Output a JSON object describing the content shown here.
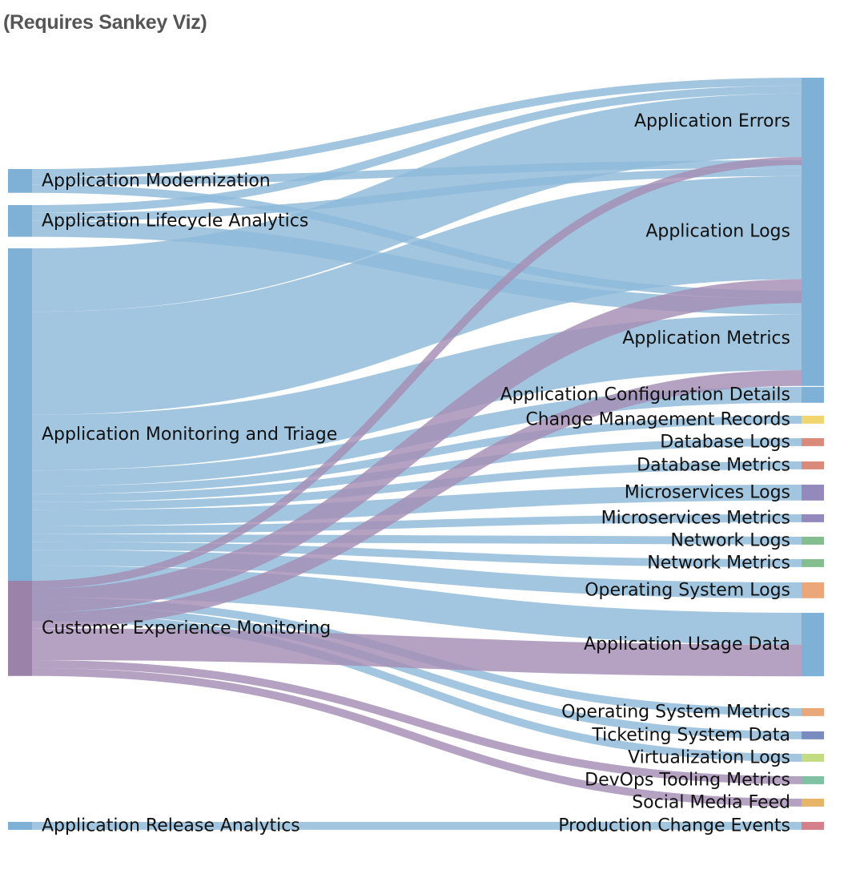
{
  "header": {
    "title": "(Requires Sankey Viz)"
  },
  "colors": {
    "blue_link": "#8fbad9",
    "blue_node": "#7fb1d6",
    "purple_link": "#a58db5",
    "purple_node": "#9b82a9",
    "change_mgmt": "#f1d66f",
    "database": "#d98a7a",
    "microservices": "#9489bd",
    "network": "#84bd8f",
    "os": "#eaa77a",
    "ticketing": "#7b8bbf",
    "virtualization": "#c3dc82",
    "devops": "#7fc1a2",
    "social": "#e6b567",
    "prod_change": "#d57f8a"
  },
  "chart_data": {
    "type": "sankey",
    "sources": [
      "Application Modernization",
      "Application Lifecycle Analytics",
      "Application Monitoring and Triage",
      "Customer Experience Monitoring",
      "Application Release Analytics"
    ],
    "targets": [
      "Application Errors",
      "Application Logs",
      "Application Metrics",
      "Application Configuration Details",
      "Change Management Records",
      "Database Logs",
      "Database Metrics",
      "Microservices Logs",
      "Microservices Metrics",
      "Network Logs",
      "Network Metrics",
      "Operating System Logs",
      "Application Usage Data",
      "Operating System Metrics",
      "Ticketing System Data",
      "Virtualization Logs",
      "DevOps Tooling Metrics",
      "Social Media Feed",
      "Production Change Events"
    ],
    "links": [
      {
        "source": "Application Modernization",
        "target": "Application Errors",
        "value": 1
      },
      {
        "source": "Application Modernization",
        "target": "Application Logs",
        "value": 1
      },
      {
        "source": "Application Modernization",
        "target": "Application Metrics",
        "value": 1
      },
      {
        "source": "Application Lifecycle Analytics",
        "target": "Application Errors",
        "value": 1
      },
      {
        "source": "Application Lifecycle Analytics",
        "target": "Application Logs",
        "value": 1
      },
      {
        "source": "Application Lifecycle Analytics",
        "target": "Application Metrics",
        "value": 2
      },
      {
        "source": "Application Monitoring and Triage",
        "target": "Application Errors",
        "value": 8
      },
      {
        "source": "Application Monitoring and Triage",
        "target": "Application Logs",
        "value": 13
      },
      {
        "source": "Application Monitoring and Triage",
        "target": "Application Metrics",
        "value": 7
      },
      {
        "source": "Application Monitoring and Triage",
        "target": "Application Configuration Details",
        "value": 2
      },
      {
        "source": "Application Monitoring and Triage",
        "target": "Change Management Records",
        "value": 1
      },
      {
        "source": "Application Monitoring and Triage",
        "target": "Database Logs",
        "value": 1
      },
      {
        "source": "Application Monitoring and Triage",
        "target": "Database Metrics",
        "value": 1
      },
      {
        "source": "Application Monitoring and Triage",
        "target": "Microservices Logs",
        "value": 2
      },
      {
        "source": "Application Monitoring and Triage",
        "target": "Microservices Metrics",
        "value": 1
      },
      {
        "source": "Application Monitoring and Triage",
        "target": "Network Logs",
        "value": 1
      },
      {
        "source": "Application Monitoring and Triage",
        "target": "Network Metrics",
        "value": 1
      },
      {
        "source": "Application Monitoring and Triage",
        "target": "Operating System Logs",
        "value": 2
      },
      {
        "source": "Application Monitoring and Triage",
        "target": "Application Usage Data",
        "value": 4
      },
      {
        "source": "Application Monitoring and Triage",
        "target": "Operating System Metrics",
        "value": 1
      },
      {
        "source": "Application Monitoring and Triage",
        "target": "Ticketing System Data",
        "value": 1
      },
      {
        "source": "Application Monitoring and Triage",
        "target": "Virtualization Logs",
        "value": 1
      },
      {
        "source": "Customer Experience Monitoring",
        "target": "Application Errors",
        "value": 1
      },
      {
        "source": "Customer Experience Monitoring",
        "target": "Application Logs",
        "value": 3
      },
      {
        "source": "Customer Experience Monitoring",
        "target": "Application Metrics",
        "value": 2
      },
      {
        "source": "Customer Experience Monitoring",
        "target": "Application Usage Data",
        "value": 4
      },
      {
        "source": "Customer Experience Monitoring",
        "target": "DevOps Tooling Metrics",
        "value": 1
      },
      {
        "source": "Customer Experience Monitoring",
        "target": "Social Media Feed",
        "value": 1
      },
      {
        "source": "Application Release Analytics",
        "target": "Production Change Events",
        "value": 1
      }
    ]
  }
}
